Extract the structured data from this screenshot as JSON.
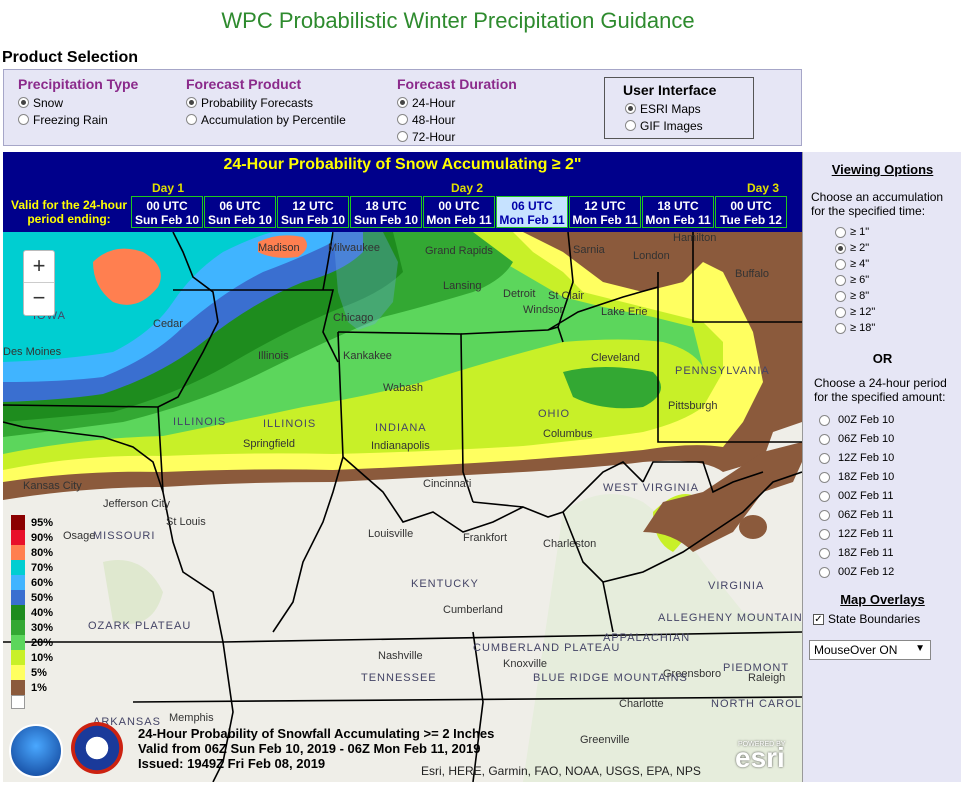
{
  "title": "WPC Probabilistic Winter Precipitation Guidance",
  "product_selection": {
    "label": "Product Selection",
    "precip_type": {
      "title": "Precipitation Type",
      "options": [
        "Snow",
        "Freezing Rain"
      ],
      "selected": "Snow"
    },
    "forecast_product": {
      "title": "Forecast Product",
      "options": [
        "Probability Forecasts",
        "Accumulation by Percentile"
      ],
      "selected": "Probability Forecasts"
    },
    "forecast_duration": {
      "title": "Forecast Duration",
      "options": [
        "24-Hour",
        "48-Hour",
        "72-Hour"
      ],
      "selected": "24-Hour"
    },
    "user_interface": {
      "title": "User Interface",
      "options": [
        "ESRI Maps",
        "GIF Images"
      ],
      "selected": "ESRI Maps"
    }
  },
  "map_header": {
    "title": "24-Hour Probability of Snow Accumulating ≥ 2\"",
    "valid_label": "Valid for the 24-hour period ending:",
    "days": [
      "Day 1",
      "Day 2",
      "Day 3"
    ],
    "times": [
      {
        "utc": "00 UTC",
        "date": "Sun Feb 10"
      },
      {
        "utc": "06 UTC",
        "date": "Sun Feb 10"
      },
      {
        "utc": "12 UTC",
        "date": "Sun Feb 10"
      },
      {
        "utc": "18 UTC",
        "date": "Sun Feb 10"
      },
      {
        "utc": "00 UTC",
        "date": "Mon Feb 11"
      },
      {
        "utc": "06 UTC",
        "date": "Mon Feb 11"
      },
      {
        "utc": "12 UTC",
        "date": "Mon Feb 11"
      },
      {
        "utc": "18 UTC",
        "date": "Mon Feb 11"
      },
      {
        "utc": "00 UTC",
        "date": "Tue Feb 12"
      }
    ],
    "selected_time_index": 5
  },
  "map": {
    "zoom_in": "+",
    "zoom_out": "−",
    "legend": [
      "95%",
      "90%",
      "80%",
      "70%",
      "60%",
      "50%",
      "40%",
      "30%",
      "20%",
      "10%",
      "5%",
      "1%"
    ],
    "legend_colors": [
      "#8b0000",
      "#e8102a",
      "#ff7f50",
      "#00ced1",
      "#40b4ff",
      "#3a6fd0",
      "#1e8c1e",
      "#33a833",
      "#5cd65c",
      "#c8f028",
      "#ffff60",
      "#8b5a3c"
    ],
    "cities": [
      "Madison",
      "Milwaukee",
      "Grand Rapids",
      "Sarnia",
      "London",
      "Hamilton",
      "Buffalo",
      "Lansing",
      "Detroit",
      "St Clair",
      "Windsor",
      "Lake Erie",
      "IOWA",
      "Cedar",
      "Des Moines",
      "Chicago",
      "Illinois",
      "Kankakee",
      "Wabash",
      "Cleveland",
      "PENNSYLVANIA",
      "Pittsburgh",
      "ILLINOIS",
      "ILLINOIS",
      "INDIANA",
      "OHIO",
      "Springfield",
      "Indianapolis",
      "Columbus",
      "Kansas City",
      "Cincinnati",
      "WEST VIRGINIA",
      "Jefferson City",
      "St Louis",
      "MISSOURI",
      "Osage",
      "Louisville",
      "Frankfort",
      "Charleston",
      "KENTUCKY",
      "OZARK PLATEAU",
      "Cumberland",
      "CUMBERLAND PLATEAU",
      "VIRGINIA",
      "Nashville",
      "Knoxville",
      "TENNESSEE",
      "Greensboro",
      "Raleigh",
      "NORTH CAROLINA",
      "Charlotte",
      "Memphis",
      "Greenville",
      "ARKANSAS",
      "PIEDMONT",
      "BLUE RIDGE MOUNTAINS",
      "ALLEGHENY MOUNTAINS",
      "APPALACHIAN"
    ],
    "caption_line1": "24-Hour Probability of Snowfall Accumulating >= 2 Inches",
    "caption_line2": "Valid from 06Z Sun Feb 10, 2019 - 06Z Mon Feb 11, 2019",
    "caption_line3": "Issued: 1949Z Fri Feb 08, 2019",
    "attribution": "Esri, HERE, Garmin, FAO, NOAA, USGS, EPA, NPS",
    "esri_logo": "esri",
    "esri_powered": "POWERED BY"
  },
  "side": {
    "viewing_options": "Viewing Options",
    "accum_text": "Choose an accumulation for the specified time:",
    "accum_options": [
      "≥ 1\"",
      "≥ 2\"",
      "≥ 4\"",
      "≥ 6\"",
      "≥ 8\"",
      "≥ 12\"",
      "≥ 18\""
    ],
    "accum_selected": 1,
    "or": "OR",
    "period_text": "Choose a 24-hour period for the specified amount:",
    "period_options": [
      "00Z Feb 10",
      "06Z Feb 10",
      "12Z Feb 10",
      "18Z Feb 10",
      "00Z Feb 11",
      "06Z Feb 11",
      "12Z Feb 11",
      "18Z Feb 11",
      "00Z Feb 12"
    ],
    "overlays_title": "Map Overlays",
    "state_boundaries": "State Boundaries",
    "mouseover": "MouseOver ON"
  }
}
